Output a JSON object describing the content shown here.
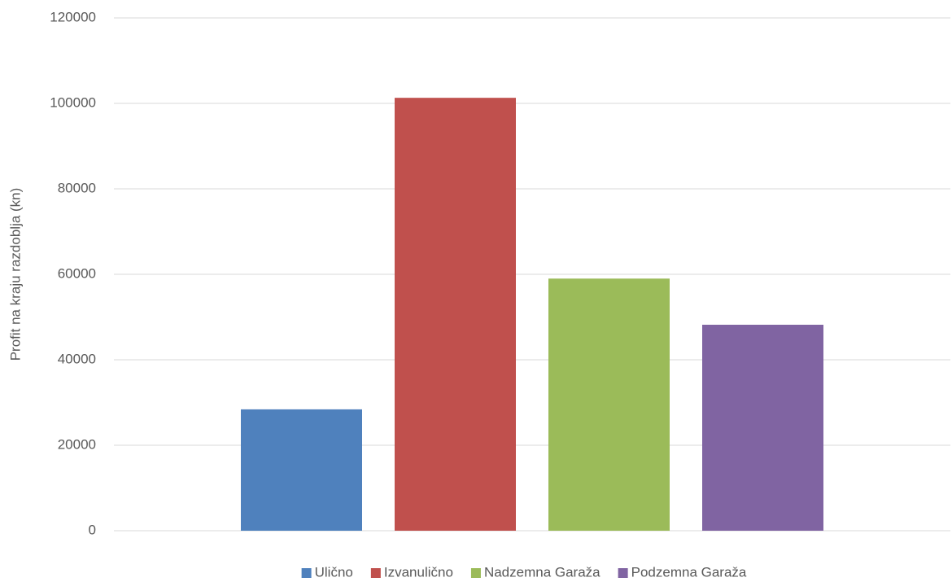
{
  "chart_data": {
    "type": "bar",
    "y_label": "Profit na kraju razdoblja (kn)",
    "categories": [
      null
    ],
    "series": [
      {
        "name": "Ulično",
        "color": "#4f81bd",
        "values": [
          28400
        ]
      },
      {
        "name": "Izvanulično",
        "color": "#c0504d",
        "values": [
          101300
        ]
      },
      {
        "name": "Nadzemna Garaža",
        "color": "#9bbb59",
        "values": [
          59000
        ]
      },
      {
        "name": "Podzemna Garaža",
        "color": "#8064a2",
        "values": [
          48200
        ]
      }
    ],
    "ylim": [
      0,
      120000
    ],
    "yticks": [
      0,
      20000,
      40000,
      60000,
      80000,
      100000,
      120000
    ],
    "grid": true,
    "legend": "bottom"
  }
}
